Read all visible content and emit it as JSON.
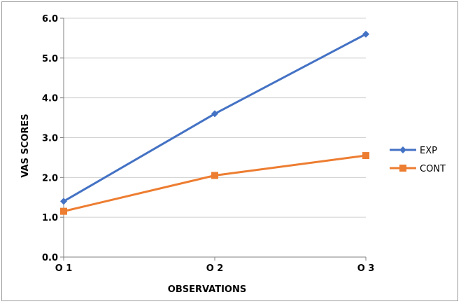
{
  "chart_data": {
    "type": "line",
    "categories": [
      "O 1",
      "O 2",
      "O 3"
    ],
    "series": [
      {
        "name": "EXP",
        "values": [
          1.4,
          3.6,
          5.6
        ],
        "color": "#4472C4",
        "marker": "diamond"
      },
      {
        "name": "CONT",
        "values": [
          1.15,
          2.05,
          2.55
        ],
        "color": "#ED7D31",
        "marker": "square"
      }
    ],
    "xlabel": "OBSERVATIONS",
    "ylabel": "VAS SCORES",
    "ylim": [
      0,
      6
    ],
    "yticks": [
      "0.0",
      "1.0",
      "2.0",
      "3.0",
      "4.0",
      "5.0",
      "6.0"
    ],
    "grid": true,
    "legend_position": "right"
  }
}
